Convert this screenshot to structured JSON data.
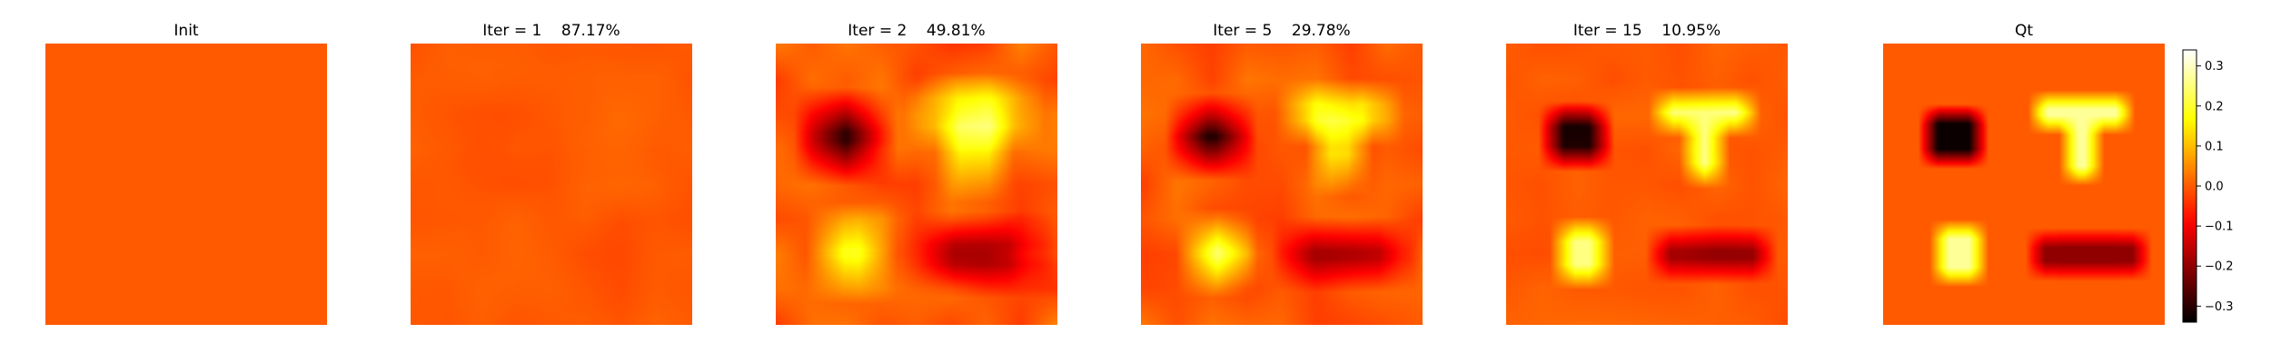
{
  "chart_data": {
    "type": "heatmap",
    "colormap": "hot",
    "grid": false,
    "panels": [
      {
        "title": "Init",
        "iteration": null,
        "error_pct": null,
        "blob_strength": 0.0,
        "blur": 0,
        "noise": 0.0
      },
      {
        "title": "Iter = 1    87.17%",
        "iteration": 1,
        "error_pct": 87.17,
        "blob_strength": 0.13,
        "blur": 16,
        "noise": 0.01
      },
      {
        "title": "Iter = 2    49.81%",
        "iteration": 2,
        "error_pct": 49.81,
        "blob_strength": 1.15,
        "blur": 9,
        "noise": 0.04
      },
      {
        "title": "Iter = 5    29.78%",
        "iteration": 5,
        "error_pct": 29.78,
        "blob_strength": 0.95,
        "blur": 7,
        "noise": 0.03
      },
      {
        "title": "Iter = 15    10.95%",
        "iteration": 15,
        "error_pct": 10.95,
        "blob_strength": 0.95,
        "blur": 4,
        "noise": 0.015
      },
      {
        "title": "Qt",
        "iteration": null,
        "error_pct": null,
        "blob_strength": 1.0,
        "blur": 3,
        "noise": 0.0
      }
    ],
    "objects": [
      {
        "name": "house-shape",
        "value": -0.33
      },
      {
        "name": "t-shape",
        "value": 0.27
      },
      {
        "name": "square-shape",
        "value": 0.27
      },
      {
        "name": "bar-shape",
        "value": -0.2
      }
    ],
    "colorbar": {
      "vmin": -0.34,
      "vmax": 0.34,
      "ticks": [
        0.3,
        0.2,
        0.1,
        0.0,
        -0.1,
        -0.2,
        -0.3
      ],
      "tick_labels": [
        "0.3",
        "0.2",
        "0.1",
        "0.0",
        "−0.1",
        "−0.2",
        "−0.3"
      ]
    }
  }
}
